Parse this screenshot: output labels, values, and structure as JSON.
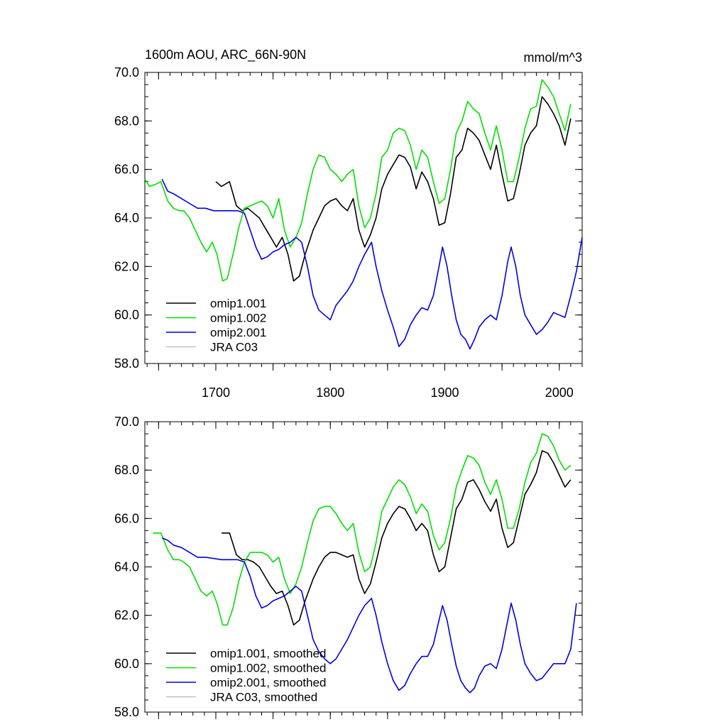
{
  "figure": {
    "left_title": "1600m AOU, ARC_66N-90N",
    "right_title": "mmol/m^3"
  },
  "chart_data": [
    {
      "type": "line",
      "panel": "top",
      "title": "1600m AOU, ARC_66N-90N",
      "units": "mmol/m^3",
      "xlim": [
        1638,
        2020
      ],
      "ylim": [
        58,
        70
      ],
      "x_major_ticks": [
        1650,
        1700,
        1750,
        1800,
        1850,
        1900,
        1950,
        2000
      ],
      "x_tick_labels": [
        {
          "value": 1700,
          "label": "1700"
        },
        {
          "value": 1800,
          "label": "1800"
        },
        {
          "value": 1900,
          "label": "1900"
        },
        {
          "value": 2000,
          "label": "2000"
        }
      ],
      "y_ticks": [
        {
          "value": 70,
          "label": "70.0"
        },
        {
          "value": 68,
          "label": "68.0"
        },
        {
          "value": 66,
          "label": "66.0"
        },
        {
          "value": 64,
          "label": "64.0"
        },
        {
          "value": 62,
          "label": "62.0"
        },
        {
          "value": 60,
          "label": "60.0"
        },
        {
          "value": 58,
          "label": "58.0"
        }
      ],
      "legend_position": "bottom-left",
      "series": [
        {
          "name": "omip1.001",
          "label": "omip1.001",
          "color": "#000000",
          "x": [
            1700,
            1705,
            1712,
            1718,
            1723,
            1728,
            1733,
            1738,
            1743,
            1748,
            1753,
            1758,
            1763,
            1768,
            1773,
            1778,
            1785,
            1790,
            1795,
            1800,
            1805,
            1810,
            1815,
            1820,
            1825,
            1830,
            1835,
            1840,
            1845,
            1850,
            1855,
            1860,
            1865,
            1870,
            1875,
            1880,
            1885,
            1890,
            1895,
            1900,
            1905,
            1910,
            1915,
            1920,
            1925,
            1930,
            1935,
            1940,
            1945,
            1950,
            1955,
            1960,
            1965,
            1970,
            1975,
            1980,
            1985,
            1990,
            1995,
            2000,
            2005,
            2010
          ],
          "y": [
            65.5,
            65.3,
            65.5,
            64.5,
            64.3,
            64.4,
            64.2,
            64.0,
            63.6,
            63.2,
            62.8,
            63.2,
            62.5,
            61.4,
            61.6,
            62.5,
            63.5,
            64.0,
            64.5,
            64.7,
            64.8,
            64.5,
            64.3,
            64.8,
            63.5,
            62.8,
            63.3,
            64.0,
            65.2,
            65.8,
            66.2,
            66.6,
            66.5,
            66.1,
            65.2,
            65.9,
            65.5,
            64.8,
            63.7,
            63.8,
            65.0,
            66.5,
            66.8,
            67.7,
            67.5,
            67.2,
            66.6,
            66.0,
            67.0,
            65.8,
            64.7,
            64.8,
            65.8,
            67.0,
            67.5,
            67.8,
            69.0,
            68.7,
            68.3,
            67.8,
            67.0,
            68.1
          ]
        },
        {
          "name": "omip1.002",
          "label": "omip1.002",
          "color": "#00e000",
          "x": [
            1638,
            1642,
            1648,
            1652,
            1658,
            1663,
            1668,
            1672,
            1677,
            1682,
            1687,
            1692,
            1697,
            1701,
            1706,
            1710,
            1715,
            1720,
            1725,
            1730,
            1735,
            1740,
            1745,
            1750,
            1755,
            1760,
            1765,
            1770,
            1775,
            1780,
            1785,
            1790,
            1795,
            1800,
            1805,
            1810,
            1815,
            1820,
            1825,
            1830,
            1835,
            1840,
            1845,
            1850,
            1855,
            1860,
            1865,
            1870,
            1875,
            1880,
            1885,
            1890,
            1895,
            1900,
            1905,
            1910,
            1915,
            1920,
            1925,
            1930,
            1935,
            1940,
            1945,
            1950,
            1955,
            1960,
            1965,
            1970,
            1975,
            1980,
            1985,
            1990,
            1995,
            2000,
            2005,
            2010
          ],
          "y": [
            65.6,
            65.3,
            65.4,
            65.5,
            64.7,
            64.4,
            64.3,
            64.3,
            64.0,
            63.5,
            63.0,
            62.6,
            63.0,
            62.5,
            61.4,
            61.5,
            62.5,
            63.6,
            64.4,
            64.5,
            64.6,
            64.7,
            64.5,
            64.0,
            64.8,
            63.5,
            62.8,
            63.2,
            63.8,
            65.0,
            66.0,
            66.6,
            66.5,
            66.0,
            65.8,
            65.5,
            65.8,
            66.0,
            64.5,
            63.6,
            64.0,
            65.0,
            66.5,
            66.8,
            67.5,
            67.7,
            67.6,
            67.0,
            66.0,
            66.8,
            66.5,
            65.5,
            64.6,
            64.8,
            66.0,
            67.5,
            68.0,
            68.8,
            68.5,
            68.3,
            67.5,
            66.8,
            67.8,
            66.8,
            65.5,
            65.5,
            66.5,
            67.7,
            68.5,
            68.6,
            69.7,
            69.4,
            69.0,
            68.3,
            67.6,
            68.7
          ]
        },
        {
          "name": "omip2.001",
          "label": "omip2.001",
          "color": "#0000e0",
          "x": [
            1653,
            1658,
            1663,
            1670,
            1677,
            1684,
            1691,
            1698,
            1705,
            1712,
            1719,
            1725,
            1730,
            1735,
            1740,
            1745,
            1750,
            1755,
            1760,
            1765,
            1770,
            1775,
            1780,
            1785,
            1790,
            1795,
            1800,
            1805,
            1810,
            1815,
            1820,
            1825,
            1830,
            1836,
            1840,
            1845,
            1850,
            1855,
            1860,
            1865,
            1870,
            1875,
            1880,
            1885,
            1890,
            1895,
            1898,
            1902,
            1906,
            1910,
            1914,
            1918,
            1922,
            1926,
            1930,
            1935,
            1940,
            1945,
            1950,
            1955,
            1958,
            1962,
            1966,
            1970,
            1975,
            1980,
            1985,
            1990,
            1995,
            2000,
            2005,
            2010,
            2015,
            2020
          ],
          "y": [
            65.6,
            65.1,
            65.0,
            64.8,
            64.6,
            64.4,
            64.4,
            64.3,
            64.3,
            64.3,
            64.3,
            64.2,
            63.5,
            62.8,
            62.3,
            62.4,
            62.6,
            62.7,
            62.9,
            63.0,
            63.2,
            63.0,
            62.0,
            60.8,
            60.2,
            60.0,
            59.8,
            60.4,
            60.7,
            61.0,
            61.4,
            62.0,
            62.5,
            63.0,
            62.0,
            61.0,
            60.2,
            59.5,
            58.7,
            59.0,
            59.6,
            60.0,
            60.3,
            60.2,
            60.8,
            62.0,
            62.8,
            62.0,
            60.8,
            59.8,
            59.2,
            59.0,
            58.6,
            59.0,
            59.5,
            59.8,
            60.0,
            59.8,
            60.8,
            62.2,
            62.8,
            62.0,
            60.8,
            60.0,
            59.6,
            59.2,
            59.4,
            59.7,
            60.1,
            60.0,
            59.9,
            60.8,
            61.8,
            63.2
          ]
        },
        {
          "name": "JRA C03",
          "label": "JRA C03",
          "color": "#c0c0c0",
          "x": [],
          "y": []
        }
      ]
    },
    {
      "type": "line",
      "panel": "bottom",
      "xlim": [
        1638,
        2020
      ],
      "ylim": [
        58,
        70
      ],
      "x_major_ticks": [
        1650,
        1700,
        1750,
        1800,
        1850,
        1900,
        1950,
        2000
      ],
      "x_tick_labels": [],
      "y_ticks": [
        {
          "value": 70,
          "label": "70.0"
        },
        {
          "value": 68,
          "label": "68.0"
        },
        {
          "value": 66,
          "label": "66.0"
        },
        {
          "value": 64,
          "label": "64.0"
        },
        {
          "value": 62,
          "label": "62.0"
        },
        {
          "value": 60,
          "label": "60.0"
        },
        {
          "value": 58,
          "label": "58.0"
        }
      ],
      "legend_position": "bottom-left",
      "series": [
        {
          "name": "omip1.001, smoothed",
          "label": "omip1.001, smoothed",
          "color": "#000000",
          "x": [
            1705,
            1712,
            1718,
            1723,
            1728,
            1733,
            1738,
            1743,
            1748,
            1753,
            1758,
            1763,
            1768,
            1773,
            1778,
            1785,
            1790,
            1795,
            1800,
            1805,
            1810,
            1815,
            1820,
            1825,
            1830,
            1835,
            1840,
            1845,
            1850,
            1855,
            1860,
            1865,
            1870,
            1875,
            1880,
            1885,
            1890,
            1895,
            1900,
            1905,
            1910,
            1915,
            1920,
            1925,
            1930,
            1935,
            1940,
            1945,
            1950,
            1955,
            1960,
            1965,
            1970,
            1975,
            1980,
            1985,
            1990,
            1995,
            2000,
            2005,
            2010
          ],
          "y": [
            65.4,
            65.4,
            64.5,
            64.3,
            64.3,
            64.2,
            64.0,
            63.6,
            63.2,
            62.9,
            63.0,
            62.4,
            61.6,
            61.8,
            62.6,
            63.5,
            64.0,
            64.4,
            64.6,
            64.6,
            64.5,
            64.4,
            64.5,
            63.5,
            62.9,
            63.3,
            64.2,
            65.2,
            65.8,
            66.2,
            66.5,
            66.4,
            66.0,
            65.5,
            65.8,
            65.5,
            64.5,
            63.8,
            64.0,
            65.2,
            66.4,
            66.8,
            67.5,
            67.6,
            67.2,
            66.7,
            66.3,
            66.8,
            65.6,
            64.8,
            65.0,
            66.0,
            67.0,
            67.4,
            67.9,
            68.8,
            68.7,
            68.3,
            67.8,
            67.3,
            67.6
          ]
        },
        {
          "name": "omip1.002, smoothed",
          "label": "omip1.002, smoothed",
          "color": "#00e000",
          "x": [
            1645,
            1652,
            1658,
            1663,
            1668,
            1672,
            1677,
            1682,
            1687,
            1692,
            1697,
            1701,
            1706,
            1710,
            1715,
            1720,
            1725,
            1730,
            1735,
            1740,
            1745,
            1750,
            1755,
            1760,
            1765,
            1770,
            1775,
            1780,
            1785,
            1790,
            1795,
            1800,
            1805,
            1810,
            1815,
            1820,
            1825,
            1830,
            1835,
            1840,
            1845,
            1850,
            1855,
            1860,
            1865,
            1870,
            1875,
            1880,
            1885,
            1890,
            1895,
            1900,
            1905,
            1910,
            1915,
            1920,
            1925,
            1930,
            1935,
            1940,
            1945,
            1950,
            1955,
            1960,
            1965,
            1970,
            1975,
            1980,
            1985,
            1990,
            1995,
            2000,
            2005,
            2010
          ],
          "y": [
            65.4,
            65.4,
            64.7,
            64.3,
            64.3,
            64.2,
            64.0,
            63.5,
            63.0,
            62.8,
            63.0,
            62.5,
            61.6,
            61.6,
            62.3,
            63.4,
            64.2,
            64.6,
            64.6,
            64.6,
            64.5,
            64.2,
            64.4,
            63.5,
            62.9,
            63.3,
            64.0,
            65.0,
            65.9,
            66.4,
            66.5,
            66.5,
            66.2,
            65.8,
            65.5,
            65.8,
            64.6,
            63.8,
            64.0,
            65.0,
            66.3,
            66.8,
            67.3,
            67.6,
            67.4,
            66.9,
            66.2,
            66.6,
            66.3,
            65.3,
            64.7,
            65.0,
            66.0,
            67.3,
            68.0,
            68.6,
            68.5,
            68.2,
            67.5,
            67.0,
            67.6,
            66.8,
            65.6,
            65.6,
            66.4,
            67.5,
            68.3,
            68.7,
            69.5,
            69.4,
            69.0,
            68.4,
            68.0,
            68.2
          ]
        },
        {
          "name": "omip2.001, smoothed",
          "label": "omip2.001, smoothed",
          "color": "#0000e0",
          "x": [
            1653,
            1658,
            1663,
            1670,
            1677,
            1684,
            1691,
            1698,
            1705,
            1712,
            1719,
            1725,
            1730,
            1735,
            1740,
            1745,
            1750,
            1755,
            1760,
            1765,
            1770,
            1775,
            1780,
            1785,
            1790,
            1795,
            1800,
            1805,
            1810,
            1815,
            1820,
            1825,
            1830,
            1836,
            1840,
            1845,
            1850,
            1855,
            1860,
            1865,
            1870,
            1875,
            1880,
            1885,
            1890,
            1895,
            1898,
            1902,
            1906,
            1910,
            1914,
            1918,
            1922,
            1926,
            1930,
            1935,
            1940,
            1945,
            1950,
            1955,
            1958,
            1962,
            1966,
            1970,
            1975,
            1980,
            1985,
            1990,
            1995,
            2000,
            2005,
            2010,
            2015
          ],
          "y": [
            65.2,
            65.1,
            64.9,
            64.8,
            64.6,
            64.4,
            64.4,
            64.35,
            64.3,
            64.3,
            64.3,
            64.2,
            63.6,
            62.8,
            62.3,
            62.4,
            62.6,
            62.7,
            62.8,
            63.0,
            63.2,
            63.0,
            62.0,
            61.0,
            60.5,
            60.2,
            60.0,
            60.2,
            60.6,
            61.0,
            61.5,
            62.0,
            62.4,
            62.7,
            62.0,
            60.9,
            60.0,
            59.3,
            58.9,
            59.1,
            59.6,
            60.0,
            60.3,
            60.3,
            60.8,
            61.8,
            62.4,
            61.8,
            60.8,
            59.9,
            59.3,
            59.0,
            58.8,
            59.0,
            59.5,
            59.9,
            60.0,
            59.8,
            60.6,
            61.8,
            62.5,
            61.8,
            60.8,
            60.0,
            59.6,
            59.3,
            59.4,
            59.7,
            60.0,
            60.0,
            60.0,
            60.6,
            62.5
          ]
        },
        {
          "name": "JRA C03, smoothed",
          "label": "JRA C03, smoothed",
          "color": "#c0c0c0",
          "x": [],
          "y": []
        }
      ]
    }
  ]
}
